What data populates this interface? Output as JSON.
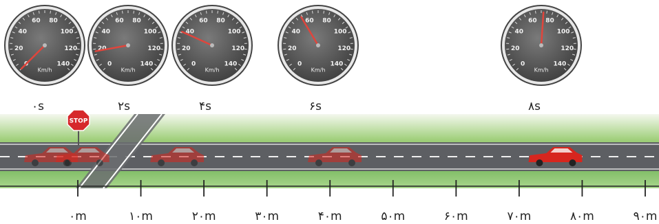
{
  "gauges": [
    {
      "time": "۰s",
      "speed": 0
    },
    {
      "time": "۲s",
      "speed": 18
    },
    {
      "time": "۴s",
      "speed": 36
    },
    {
      "time": "۶s",
      "speed": 54
    },
    {
      "time": "۸s",
      "speed": 72
    }
  ],
  "dial": {
    "ticks": [
      0,
      20,
      40,
      60,
      80,
      100,
      120,
      140
    ],
    "unit": "Km/h"
  },
  "distance_ticks": [
    {
      "value": 0,
      "label": "۰m"
    },
    {
      "value": 10,
      "label": "۱۰m"
    },
    {
      "value": 20,
      "label": "۲۰m"
    },
    {
      "value": 30,
      "label": "۳۰m"
    },
    {
      "value": 40,
      "label": "۴۰m"
    },
    {
      "value": 50,
      "label": "۵۰m"
    },
    {
      "value": 60,
      "label": "۶۰m"
    },
    {
      "value": 70,
      "label": "۷۰m"
    },
    {
      "value": 80,
      "label": "۸۰m"
    },
    {
      "value": 90,
      "label": "۹۰m"
    }
  ],
  "cars": [
    {
      "position": 0
    },
    {
      "position": 5
    },
    {
      "position": 20
    },
    {
      "position": 45
    },
    {
      "position": 80
    }
  ],
  "stop_sign": "STOP"
}
